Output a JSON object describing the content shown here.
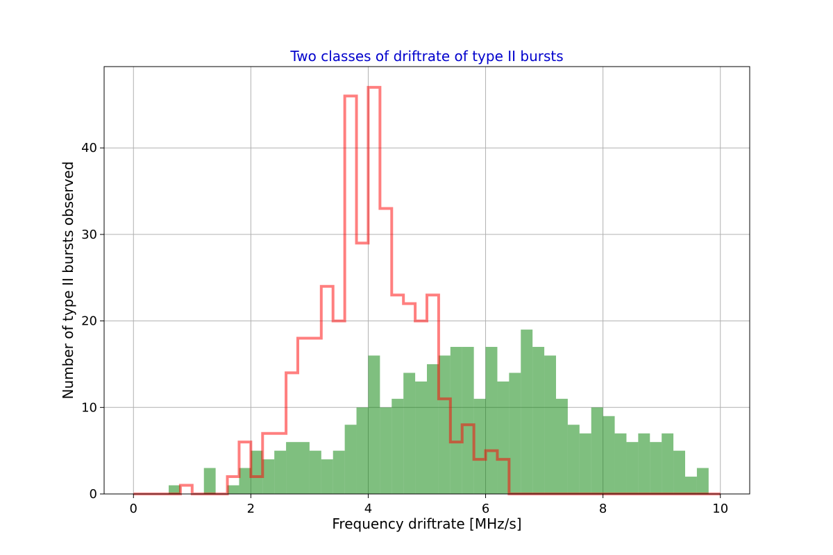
{
  "chart_data": {
    "type": "histogram",
    "title": "Two classes of driftrate of type II bursts",
    "xlabel": "Frequency driftrate [MHz/s]",
    "ylabel": "Number of type II bursts observed",
    "xlim": [
      -0.5,
      10.5
    ],
    "ylim": [
      0,
      49.4
    ],
    "xticks": [
      0,
      2,
      4,
      6,
      8,
      10
    ],
    "yticks": [
      0,
      10,
      20,
      30,
      40
    ],
    "grid": true,
    "bin_width": 0.2,
    "series": [
      {
        "style": "filled",
        "color": "#008000",
        "opacity": 0.5,
        "bins": [
          [
            0.6,
            1
          ],
          [
            0.8,
            0
          ],
          [
            1.0,
            0
          ],
          [
            1.2,
            3
          ],
          [
            1.4,
            0
          ],
          [
            1.6,
            1
          ],
          [
            1.8,
            3
          ],
          [
            2.0,
            5
          ],
          [
            2.2,
            4
          ],
          [
            2.4,
            5
          ],
          [
            2.6,
            6
          ],
          [
            2.8,
            6
          ],
          [
            3.0,
            5
          ],
          [
            3.2,
            4
          ],
          [
            3.4,
            5
          ],
          [
            3.6,
            8
          ],
          [
            3.8,
            10
          ],
          [
            4.0,
            16
          ],
          [
            4.2,
            10
          ],
          [
            4.4,
            11
          ],
          [
            4.6,
            14
          ],
          [
            4.8,
            13
          ],
          [
            5.0,
            15
          ],
          [
            5.2,
            16
          ],
          [
            5.4,
            17
          ],
          [
            5.6,
            17
          ],
          [
            5.8,
            11
          ],
          [
            6.0,
            17
          ],
          [
            6.2,
            13
          ],
          [
            6.4,
            14
          ],
          [
            6.6,
            19
          ],
          [
            6.8,
            17
          ],
          [
            7.0,
            16
          ],
          [
            7.2,
            11
          ],
          [
            7.4,
            8
          ],
          [
            7.6,
            7
          ],
          [
            7.8,
            10
          ],
          [
            8.0,
            9
          ],
          [
            8.2,
            7
          ],
          [
            8.4,
            6
          ],
          [
            8.6,
            7
          ],
          [
            8.8,
            6
          ],
          [
            9.0,
            7
          ],
          [
            9.2,
            5
          ],
          [
            9.4,
            2
          ],
          [
            9.6,
            3
          ]
        ],
        "range_end": 10.0
      },
      {
        "style": "step",
        "color": "#ff0000",
        "opacity": 0.5,
        "edges": [
          0,
          0.8,
          1.0,
          1.2,
          1.6,
          1.8,
          2.0,
          2.2,
          2.4,
          2.6,
          2.8,
          3.0,
          3.2,
          3.4,
          3.6,
          3.8,
          4.0,
          4.2,
          4.4,
          4.6,
          4.8,
          5.0,
          5.2,
          5.4,
          5.6,
          5.8,
          6.0,
          6.2,
          6.4,
          6.6,
          10.0
        ],
        "counts": [
          0,
          1,
          0,
          0,
          2,
          6,
          2,
          7,
          7,
          14,
          18,
          18,
          24,
          20,
          46,
          29,
          47,
          33,
          23,
          22,
          20,
          23,
          11,
          6,
          8,
          4,
          5,
          4,
          0,
          0
        ]
      }
    ]
  }
}
